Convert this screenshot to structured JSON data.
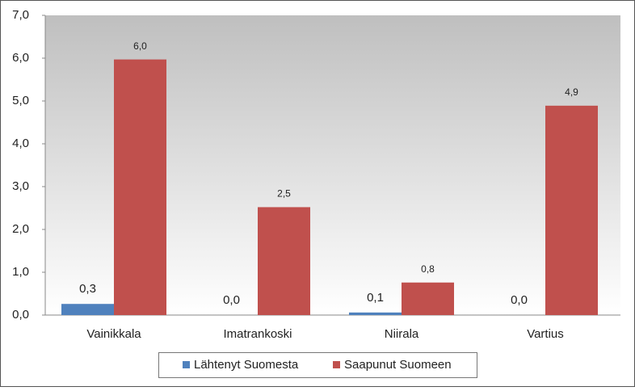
{
  "chart_data": {
    "type": "bar",
    "categories": [
      "Vainikkala",
      "Imatrankoski",
      "Niirala",
      "Vartius"
    ],
    "series": [
      {
        "name": "Lähtenyt Suomesta",
        "color": "#4f81bd",
        "values": [
          0.26,
          0,
          0.06,
          0
        ],
        "value_labels": [
          "0,3",
          "0,0",
          "0,1",
          "0,0"
        ]
      },
      {
        "name": "Saapunut Suomeen",
        "color": "#c0504d",
        "values": [
          5.97,
          2.52,
          0.76,
          4.89
        ],
        "value_labels": [
          "6,0",
          "2,5",
          "0,8",
          "4,9"
        ]
      }
    ],
    "ylim": [
      0,
      7
    ],
    "yticks": [
      {
        "value": 0,
        "label": "0,0"
      },
      {
        "value": 1,
        "label": "1,0"
      },
      {
        "value": 2,
        "label": "2,0"
      },
      {
        "value": 3,
        "label": "3,0"
      },
      {
        "value": 4,
        "label": "4,0"
      },
      {
        "value": 5,
        "label": "5,0"
      },
      {
        "value": 6,
        "label": "6,0"
      },
      {
        "value": 7,
        "label": "7,0"
      }
    ],
    "legend": "bottom"
  }
}
